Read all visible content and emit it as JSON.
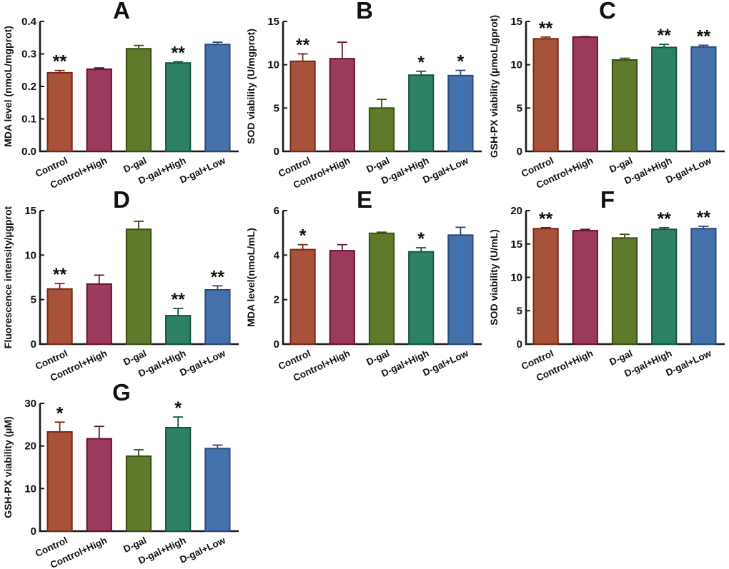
{
  "figure_style": {
    "background": "#ffffff",
    "axis_color": "#1a1a1a",
    "bar_colors": [
      "#A8523A",
      "#9C3A5E",
      "#5E7A2A",
      "#2D8167",
      "#4470AB"
    ],
    "bar_edge_colors": [
      "#772913",
      "#641337",
      "#3A5013",
      "#14563F",
      "#2B4A78"
    ]
  },
  "chart_data": [
    {
      "type": "bar",
      "panel": "A",
      "title": "A",
      "ylabel": "MDA level (nmoL/mgprot)",
      "ylim": [
        0,
        0.4
      ],
      "yticks": [
        0,
        0.1,
        0.2,
        0.3,
        0.4
      ],
      "ytick_labels": [
        "0.0",
        "0.1",
        "0.2",
        "0.3",
        "0.4"
      ],
      "categories": [
        "Control",
        "Control+High",
        "D-gal",
        "D-gal+High",
        "D-gal+Low"
      ],
      "values": [
        0.242,
        0.253,
        0.316,
        0.272,
        0.329
      ],
      "errors": [
        0.007,
        0.004,
        0.01,
        0.004,
        0.007
      ],
      "significance": [
        "**",
        "",
        "",
        "**",
        ""
      ]
    },
    {
      "type": "bar",
      "panel": "B",
      "title": "B",
      "ylabel": "SOD viability (U/mgprot)",
      "ylim": [
        0,
        15
      ],
      "yticks": [
        0,
        5,
        10,
        15
      ],
      "ytick_labels": [
        "0",
        "5",
        "10",
        "15"
      ],
      "categories": [
        "Control",
        "Control+High",
        "D-gal",
        "D-gal+High",
        "D-gal+Low"
      ],
      "values": [
        10.4,
        10.7,
        5.0,
        8.8,
        8.75
      ],
      "errors": [
        0.85,
        1.9,
        1.0,
        0.45,
        0.6
      ],
      "significance": [
        "**",
        "",
        "",
        "*",
        "*"
      ]
    },
    {
      "type": "bar",
      "panel": "C",
      "title": "C",
      "ylabel": "GSH-PX viability (µmoL/gprot)",
      "ylim": [
        0,
        15
      ],
      "yticks": [
        0,
        5,
        10,
        15
      ],
      "ytick_labels": [
        "0",
        "5",
        "10",
        "15"
      ],
      "categories": [
        "Control",
        "Control+High",
        "D-gal",
        "D-gal+High",
        "D-gal+Low"
      ],
      "values": [
        13.0,
        13.2,
        10.55,
        12.0,
        12.05
      ],
      "errors": [
        0.2,
        0.05,
        0.2,
        0.35,
        0.2
      ],
      "significance": [
        "**",
        "",
        "",
        "**",
        "**"
      ]
    },
    {
      "type": "bar",
      "panel": "D",
      "title": "D",
      "ylabel": "Fluorescence intensity/µgprot",
      "ylim": [
        0,
        15
      ],
      "yticks": [
        0,
        5,
        10,
        15
      ],
      "ytick_labels": [
        "0",
        "5",
        "10",
        "15"
      ],
      "categories": [
        "Control",
        "Control+High",
        "D-gal",
        "D-gal+High",
        "D-gal+Low"
      ],
      "values": [
        6.2,
        6.75,
        12.9,
        3.2,
        6.1
      ],
      "errors": [
        0.6,
        1.0,
        0.9,
        0.8,
        0.45
      ],
      "significance": [
        "**",
        "",
        "",
        "**",
        "**"
      ]
    },
    {
      "type": "bar",
      "panel": "E",
      "title": "E",
      "ylabel": "MDA level(nmoL/mL)",
      "ylim": [
        0,
        6
      ],
      "yticks": [
        0,
        2,
        4,
        6
      ],
      "ytick_labels": [
        "0",
        "2",
        "4",
        "6"
      ],
      "categories": [
        "Control",
        "Control+High",
        "D-gal",
        "D-gal+High",
        "D-gal+Low"
      ],
      "values": [
        4.25,
        4.2,
        4.98,
        4.15,
        4.9
      ],
      "errors": [
        0.22,
        0.27,
        0.05,
        0.18,
        0.35
      ],
      "significance": [
        "*",
        "",
        "",
        "*",
        ""
      ]
    },
    {
      "type": "bar",
      "panel": "F",
      "title": "F",
      "ylabel": "SOD viability (U/mL)",
      "ylim": [
        0,
        20
      ],
      "yticks": [
        0,
        5,
        10,
        15,
        20
      ],
      "ytick_labels": [
        "0",
        "5",
        "10",
        "15",
        "20"
      ],
      "categories": [
        "Control",
        "Control+High",
        "D-gal",
        "D-gal+High",
        "D-gal+Low"
      ],
      "values": [
        17.3,
        17.0,
        15.9,
        17.2,
        17.3
      ],
      "errors": [
        0.15,
        0.2,
        0.55,
        0.25,
        0.35
      ],
      "significance": [
        "**",
        "",
        "",
        "**",
        "**"
      ]
    },
    {
      "type": "bar",
      "panel": "G",
      "title": "G",
      "ylabel": "GSH-PX viability (µM)",
      "ylim": [
        0,
        30
      ],
      "yticks": [
        0,
        10,
        20,
        30
      ],
      "ytick_labels": [
        "0",
        "10",
        "20",
        "30"
      ],
      "categories": [
        "Control",
        "Control+High",
        "D-gal",
        "D-gal+High",
        "D-gal+Low"
      ],
      "values": [
        23.3,
        21.7,
        17.6,
        24.3,
        19.4
      ],
      "errors": [
        2.3,
        2.9,
        1.5,
        2.5,
        0.8
      ],
      "significance": [
        "*",
        "",
        "",
        "*",
        ""
      ]
    }
  ]
}
